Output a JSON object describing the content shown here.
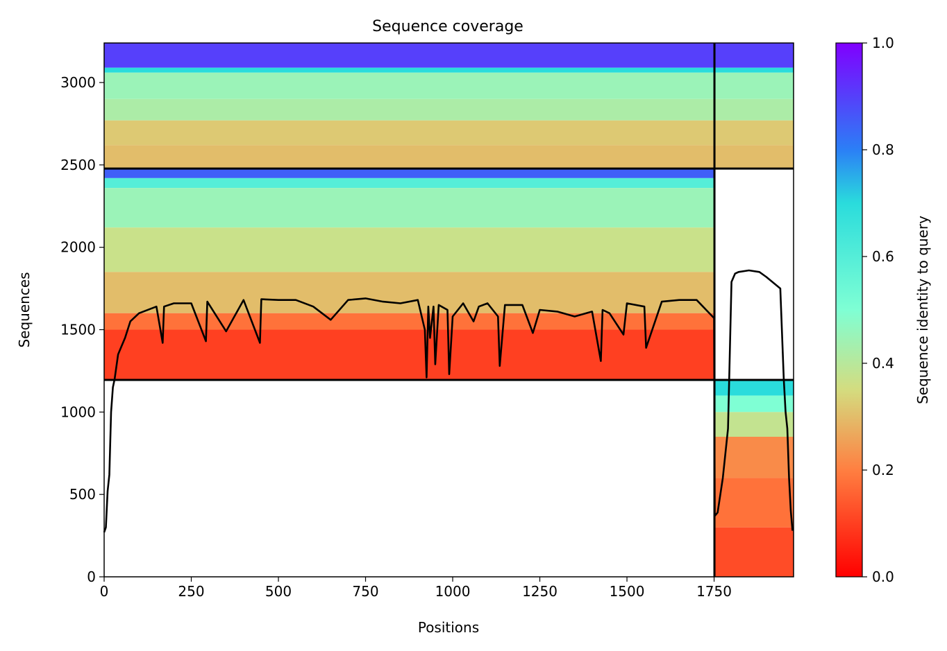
{
  "chart_data": {
    "type": "heatmap",
    "title": "Sequence coverage",
    "xlabel": "Positions",
    "ylabel": "Sequences",
    "xlim": [
      0,
      1978
    ],
    "ylim": [
      0,
      3240
    ],
    "xticks": [
      0,
      250,
      500,
      750,
      1000,
      1250,
      1500,
      1750
    ],
    "yticks": [
      0,
      500,
      1000,
      1500,
      2000,
      2500,
      3000
    ],
    "grid": false,
    "chain_boundaries_x": [
      1751
    ],
    "block_boundaries_y": [
      1195,
      2478
    ],
    "colormap": "rainbow_r",
    "colorbar": {
      "label": "Sequence identity to query",
      "range": [
        0.0,
        1.0
      ],
      "ticks": [
        "0.0",
        "0.2",
        "0.4",
        "0.6",
        "0.8",
        "1.0"
      ],
      "colors": [
        "#ff0000",
        "#ff7f41",
        "#d4dc7f",
        "#7fffd4",
        "#2adcdc",
        "#2b7ff6",
        "#8000ff"
      ]
    },
    "blocks": [
      {
        "x": [
          0,
          1751
        ],
        "y": [
          2478,
          3240
        ],
        "identity_bands": [
          [
            3090,
            3240,
            0.9
          ],
          [
            3060,
            3090,
            0.7
          ],
          [
            2900,
            3060,
            0.45
          ],
          [
            2770,
            2900,
            0.42
          ],
          [
            2620,
            2770,
            0.32
          ],
          [
            2478,
            2620,
            0.3
          ]
        ]
      },
      {
        "x": [
          1751,
          1978
        ],
        "y": [
          2478,
          3240
        ],
        "identity_bands": [
          [
            3090,
            3240,
            0.9
          ],
          [
            3060,
            3090,
            0.7
          ],
          [
            2900,
            3060,
            0.45
          ],
          [
            2770,
            2900,
            0.42
          ],
          [
            2620,
            2770,
            0.32
          ],
          [
            2478,
            2620,
            0.3
          ]
        ]
      },
      {
        "x": [
          0,
          1751
        ],
        "y": [
          1195,
          2478
        ],
        "identity_bands": [
          [
            2420,
            2478,
            0.85
          ],
          [
            2360,
            2420,
            0.6
          ],
          [
            2120,
            2360,
            0.45
          ],
          [
            1850,
            2120,
            0.37
          ],
          [
            1600,
            1850,
            0.3
          ],
          [
            1500,
            1600,
            0.18
          ],
          [
            1195,
            1500,
            0.1
          ]
        ]
      },
      {
        "x": [
          1751,
          1978
        ],
        "y": [
          0,
          1195
        ],
        "identity_bands": [
          [
            1100,
            1195,
            0.7
          ],
          [
            1000,
            1100,
            0.5
          ],
          [
            850,
            1000,
            0.38
          ],
          [
            600,
            850,
            0.22
          ],
          [
            300,
            600,
            0.18
          ],
          [
            0,
            300,
            0.12
          ]
        ]
      }
    ],
    "coverage_line": {
      "name": "",
      "x": [
        0,
        5,
        10,
        15,
        20,
        25,
        30,
        40,
        50,
        60,
        75,
        100,
        150,
        168,
        172,
        200,
        250,
        292,
        296,
        350,
        400,
        447,
        451,
        500,
        550,
        600,
        650,
        700,
        750,
        800,
        850,
        900,
        920,
        925,
        930,
        935,
        945,
        950,
        960,
        985,
        990,
        1000,
        1030,
        1060,
        1075,
        1100,
        1130,
        1135,
        1150,
        1200,
        1230,
        1250,
        1300,
        1350,
        1400,
        1425,
        1430,
        1450,
        1490,
        1500,
        1550,
        1555,
        1600,
        1650,
        1700,
        1750,
        1752,
        1760,
        1775,
        1790,
        1800,
        1810,
        1820,
        1850,
        1880,
        1900,
        1940,
        1950,
        1955,
        1960,
        1965,
        1970,
        1975
      ],
      "y": [
        270,
        300,
        520,
        620,
        1000,
        1150,
        1200,
        1350,
        1400,
        1450,
        1550,
        1600,
        1640,
        1420,
        1640,
        1660,
        1660,
        1430,
        1670,
        1490,
        1680,
        1420,
        1685,
        1680,
        1680,
        1640,
        1560,
        1680,
        1690,
        1670,
        1660,
        1680,
        1500,
        1210,
        1640,
        1450,
        1640,
        1290,
        1650,
        1620,
        1230,
        1580,
        1660,
        1550,
        1640,
        1660,
        1580,
        1280,
        1650,
        1650,
        1480,
        1620,
        1610,
        1580,
        1610,
        1310,
        1620,
        1600,
        1470,
        1660,
        1640,
        1390,
        1670,
        1680,
        1680,
        1570,
        370,
        390,
        600,
        900,
        1790,
        1840,
        1850,
        1860,
        1850,
        1820,
        1750,
        1200,
        1000,
        900,
        600,
        400,
        280
      ]
    }
  }
}
